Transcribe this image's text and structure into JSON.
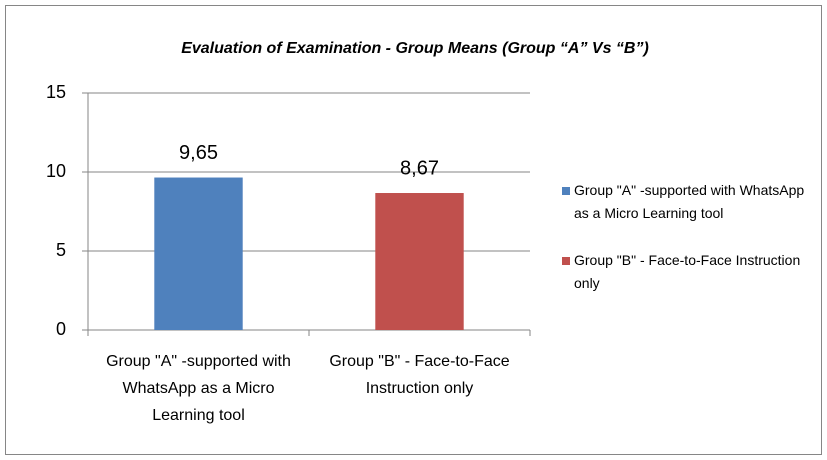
{
  "chart_data": {
    "type": "bar",
    "title": "Evaluation of Examination - Group Means (Group “A” Vs “B”)",
    "categories": [
      "Group \"A\" -supported with WhatsApp as a Micro Learning tool",
      "Group \"B\" - Face-to-Face Instruction only"
    ],
    "values": [
      9.65,
      8.67
    ],
    "value_labels": [
      "9,65",
      "8,67"
    ],
    "colors": [
      "#4f81bd",
      "#c0504d"
    ],
    "ylim": [
      0,
      15
    ],
    "yticks": [
      0,
      5,
      10,
      15
    ],
    "grid": true,
    "legend": "right"
  }
}
